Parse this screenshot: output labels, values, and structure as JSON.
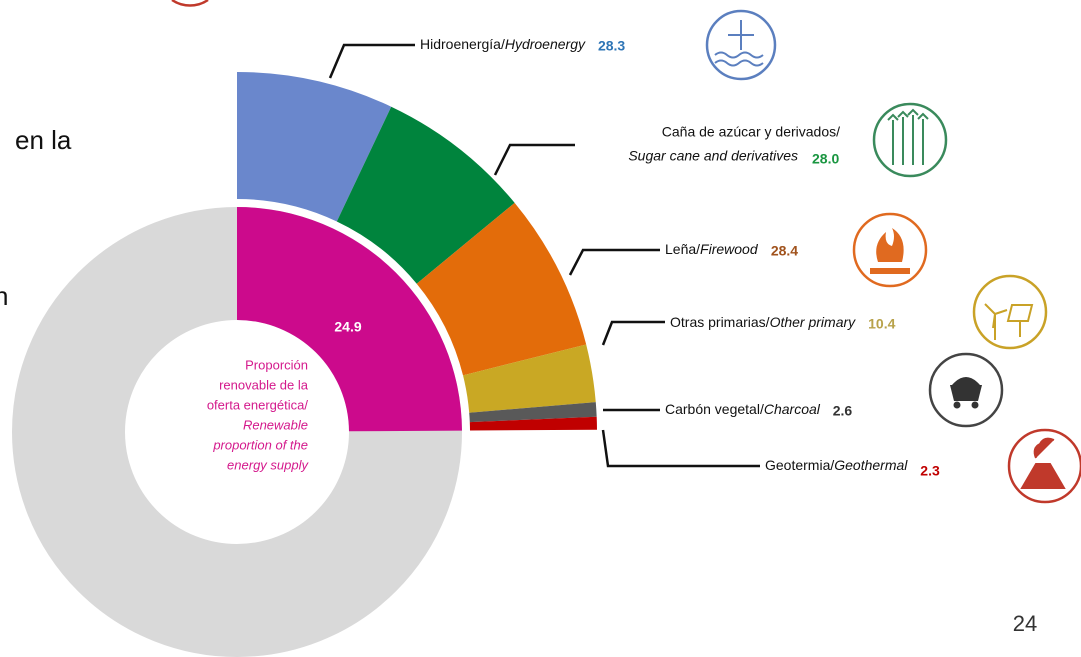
{
  "chart_data": {
    "type": "pie",
    "share": {
      "value": 24.9,
      "color": "#cc0a8c",
      "label_color": "#ffffff"
    },
    "other_color": "#d9d9d9",
    "center_label_es": [
      "Proporción",
      "renovable de la",
      "oferta energética/"
    ],
    "center_label_en": [
      "Renewable",
      "proportion of the",
      "energy supply"
    ],
    "center_label_color": "#d4198c",
    "breakdown": [
      {
        "name_es": "Hidroenergía/",
        "name_en": "Hydroenergy",
        "value": 28.3,
        "color": "#6a87cc",
        "label_color": "#2e75b6"
      },
      {
        "name_es": "Caña de azúcar y derivados/",
        "name_en": "Sugar cane and derivatives",
        "value": 28.0,
        "value_label": "28.0",
        "color": "#00843d",
        "label_color": "#1a9641"
      },
      {
        "name_es": "Leña/",
        "name_en": "Firewood",
        "value": 28.4,
        "color": "#e36c0a",
        "label_color": "#a0521c"
      },
      {
        "name_es": "Otras primarias/",
        "name_en": "Other primary",
        "value": 10.4,
        "color": "#c9a824",
        "label_color": "#b8a24a"
      },
      {
        "name_es": "Carbón vegetal/",
        "name_en": "Charcoal",
        "value": 2.6,
        "color": "#595959",
        "label_color": "#333333"
      },
      {
        "name_es": "Geotermia/",
        "name_en": "Geothermal",
        "value": 2.3,
        "color": "#c00000",
        "label_color": "#c00000"
      }
    ]
  },
  "slide": {
    "fragments": [
      "en la",
      "n"
    ],
    "page_number": "24"
  }
}
